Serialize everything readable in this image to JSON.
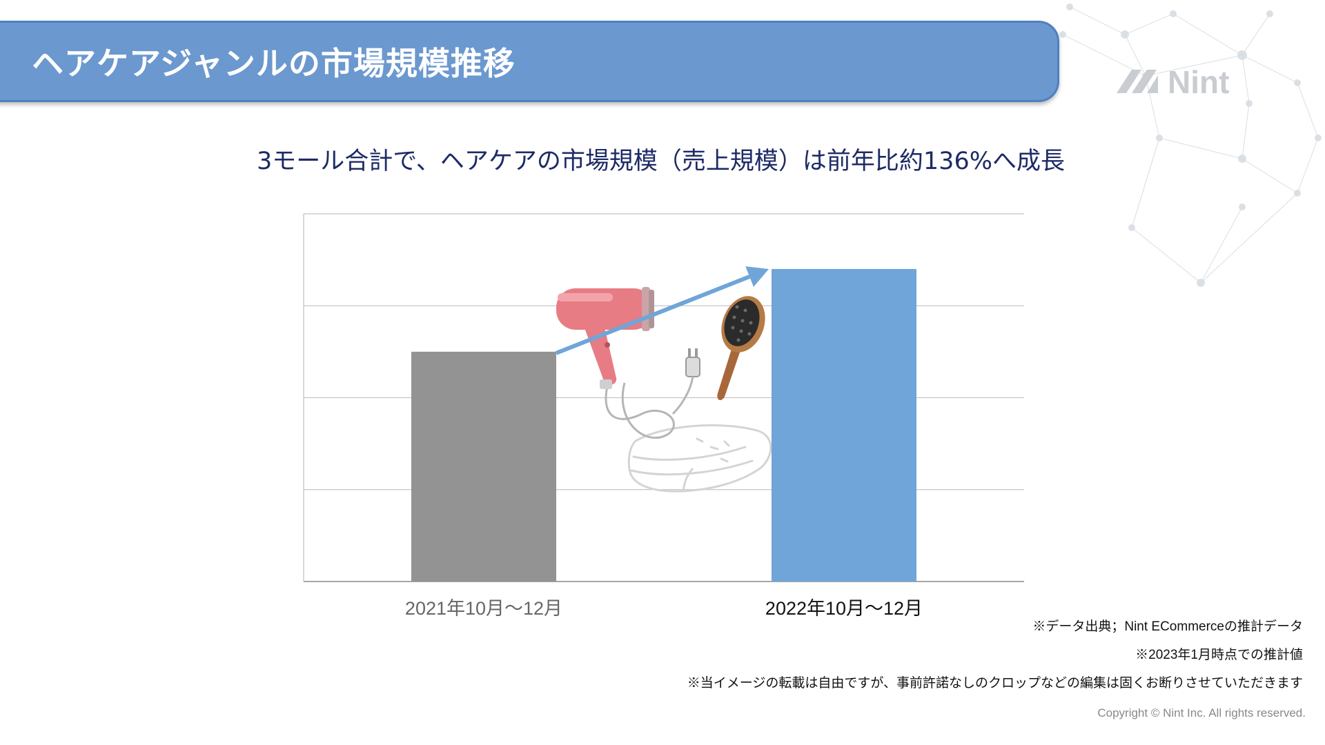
{
  "header": {
    "title": "ヘアケアジャンルの市場規模推移"
  },
  "logo": {
    "text": "Nint"
  },
  "subtitle": "3モール合計で、ヘアケアの市場規模（売上規模）は前年比約136%へ成長",
  "chart_data": {
    "type": "bar",
    "categories": [
      "2021年10月〜12月",
      "2022年10月〜12月"
    ],
    "values": [
      100,
      136
    ],
    "colors": [
      "#939393",
      "#6fa5d8"
    ],
    "ylim": [
      0,
      160
    ],
    "grid": true,
    "title": "",
    "xlabel": "",
    "ylabel": "",
    "growth_arrow": true
  },
  "colors": {
    "header_bg": "#6b98cf",
    "header_border": "#4f7fc0",
    "subtitle_text": "#1d2a66",
    "arrow": "#6fa5d8"
  },
  "illustration": {
    "icons": [
      "hair-dryer-icon",
      "hair-brush-icon",
      "towel-icon"
    ]
  },
  "footnotes": [
    "※データ出典；Nint ECommerceの推計データ",
    "※2023年1月時点での推計値",
    "※当イメージの転載は自由ですが、事前許諾なしのクロップなどの編集は固くお断りさせていただきます"
  ],
  "copyright": "Copyright © Nint Inc. All rights reserved."
}
